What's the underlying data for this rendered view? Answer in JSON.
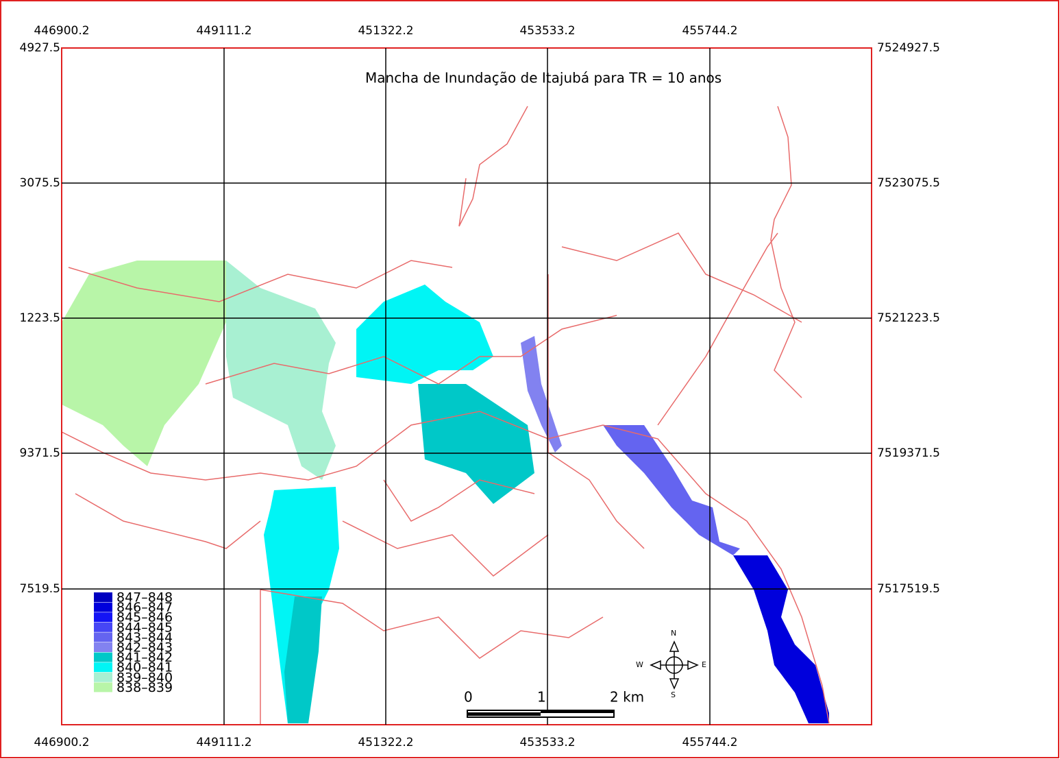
{
  "title": "Mancha de Inundação de Itajubá para TR = 10 anos",
  "x_labels": [
    "446900.2",
    "449111.2",
    "451322.2",
    "453533.2",
    "455744.2"
  ],
  "y_labels_left": [
    "4927.5",
    "3075.5",
    "1223.5",
    "9371.5",
    "7519.5"
  ],
  "y_labels_right": [
    "7524927.5",
    "7523075.5",
    "7521223.5",
    "7519371.5",
    "7517519.5"
  ],
  "legend": [
    {
      "label": "847–848",
      "color": "#0000c0"
    },
    {
      "label": "846–847",
      "color": "#0000dc"
    },
    {
      "label": "845–846",
      "color": "#1414f5"
    },
    {
      "label": "844–845",
      "color": "#4646f5"
    },
    {
      "label": "843–844",
      "color": "#6464f0"
    },
    {
      "label": "842–843",
      "color": "#8282f0"
    },
    {
      "label": "841–842",
      "color": "#00c8c8"
    },
    {
      "label": "840–841",
      "color": "#00f5f5"
    },
    {
      "label": "839–840",
      "color": "#a8f0d2"
    },
    {
      "label": "838–839",
      "color": "#b8f5a8"
    }
  ],
  "scale_bar": [
    "0",
    "1",
    "2 km"
  ],
  "compass": {
    "n": "N",
    "s": "S",
    "e": "E",
    "w": "W"
  }
}
